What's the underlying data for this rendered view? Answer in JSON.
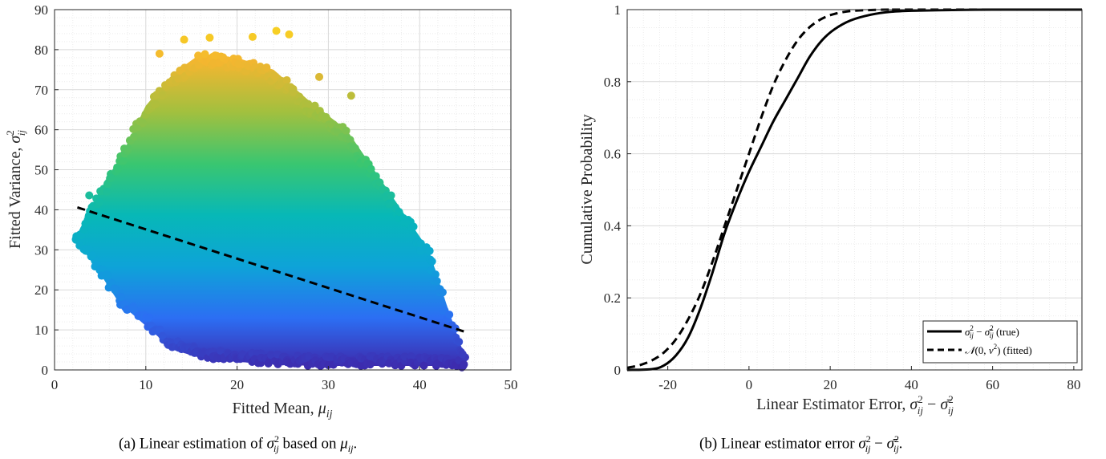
{
  "chart_data": [
    {
      "type": "scatter",
      "xlabel": "Fitted Mean, μ_ij",
      "ylabel": "Fitted Variance, σ²_ij",
      "xlim": [
        0,
        50
      ],
      "ylim": [
        0,
        90
      ],
      "xticks": [
        "0",
        "10",
        "20",
        "30",
        "40",
        "50"
      ],
      "yticks": [
        "0",
        "10",
        "20",
        "30",
        "40",
        "50",
        "60",
        "70",
        "80",
        "90"
      ],
      "grid": true,
      "color_by": "y",
      "colormap": [
        "#3e26a8",
        "#2c6ef3",
        "#0ea3d8",
        "#07b8b7",
        "#39c671",
        "#a1c03f",
        "#f4b630",
        "#f9e01b"
      ],
      "point_cloud_envelope": [
        {
          "x": 2.5,
          "y_min": 32,
          "y_max": 34
        },
        {
          "x": 5,
          "y_min": 24,
          "y_max": 45
        },
        {
          "x": 7,
          "y_min": 17,
          "y_max": 52
        },
        {
          "x": 10,
          "y_min": 11,
          "y_max": 66
        },
        {
          "x": 13,
          "y_min": 5,
          "y_max": 74
        },
        {
          "x": 16,
          "y_min": 3,
          "y_max": 79
        },
        {
          "x": 20,
          "y_min": 2,
          "y_max": 78
        },
        {
          "x": 24,
          "y_min": 1.5,
          "y_max": 75
        },
        {
          "x": 28,
          "y_min": 1,
          "y_max": 67
        },
        {
          "x": 32,
          "y_min": 1,
          "y_max": 60
        },
        {
          "x": 35,
          "y_min": 1,
          "y_max": 50
        },
        {
          "x": 38,
          "y_min": 1,
          "y_max": 40
        },
        {
          "x": 41,
          "y_min": 1,
          "y_max": 30
        },
        {
          "x": 43,
          "y_min": 1,
          "y_max": 16
        },
        {
          "x": 45,
          "y_min": 0.5,
          "y_max": 3
        }
      ],
      "outliers": [
        [
          14.2,
          82.5
        ],
        [
          17,
          83
        ],
        [
          21.7,
          83.2
        ],
        [
          24.3,
          84.7
        ],
        [
          25.7,
          83.8
        ],
        [
          29,
          73.2
        ],
        [
          32.5,
          68.5
        ],
        [
          3.8,
          43.6
        ],
        [
          11.5,
          79
        ]
      ],
      "fit_line": {
        "style": "dashed",
        "color": "#000000",
        "x": [
          2.5,
          45
        ],
        "y": [
          40.6,
          9.5
        ]
      },
      "caption": "(a) Linear estimation of σ²ij based on μij."
    },
    {
      "type": "line",
      "xlabel": "Linear Estimator Error, σ²_ij − σ̄²_ij",
      "ylabel": "Cumulative Probability",
      "xlim": [
        -30,
        82
      ],
      "ylim": [
        0,
        1
      ],
      "xticks": [
        "-20",
        "0",
        "20",
        "40",
        "60",
        "80"
      ],
      "yticks": [
        "0",
        "0.2",
        "0.4",
        "0.6",
        "0.8",
        "1"
      ],
      "grid": true,
      "legend_position": "bottom-right",
      "series": [
        {
          "name": "σ²ij − σ̄²ij (true)",
          "style": "solid",
          "x": [
            -30,
            -24,
            -21,
            -18,
            -15,
            -12,
            -9,
            -6,
            -3,
            0,
            3,
            6,
            9,
            12,
            15,
            18,
            21,
            25,
            30,
            35,
            40,
            50,
            60,
            82
          ],
          "y": [
            0.0,
            0.002,
            0.012,
            0.04,
            0.09,
            0.17,
            0.27,
            0.38,
            0.47,
            0.55,
            0.62,
            0.69,
            0.75,
            0.81,
            0.87,
            0.915,
            0.945,
            0.97,
            0.986,
            0.994,
            0.997,
            0.999,
            1.0,
            1.0
          ]
        },
        {
          "name": "N(0, ν²) (fitted)",
          "style": "dashed",
          "x": [
            -30,
            -27,
            -24,
            -21,
            -18,
            -15,
            -12,
            -9,
            -6,
            -3,
            0,
            3,
            6,
            9,
            12,
            15,
            18,
            21,
            25,
            30,
            35,
            40,
            82
          ],
          "y": [
            0.006,
            0.013,
            0.026,
            0.048,
            0.085,
            0.14,
            0.21,
            0.3,
            0.4,
            0.5,
            0.6,
            0.7,
            0.79,
            0.86,
            0.915,
            0.952,
            0.975,
            0.988,
            0.996,
            0.999,
            1.0,
            1.0,
            1.0
          ]
        }
      ],
      "caption": "(b) Linear estimator error σ²ij − σ̄²ij."
    }
  ]
}
